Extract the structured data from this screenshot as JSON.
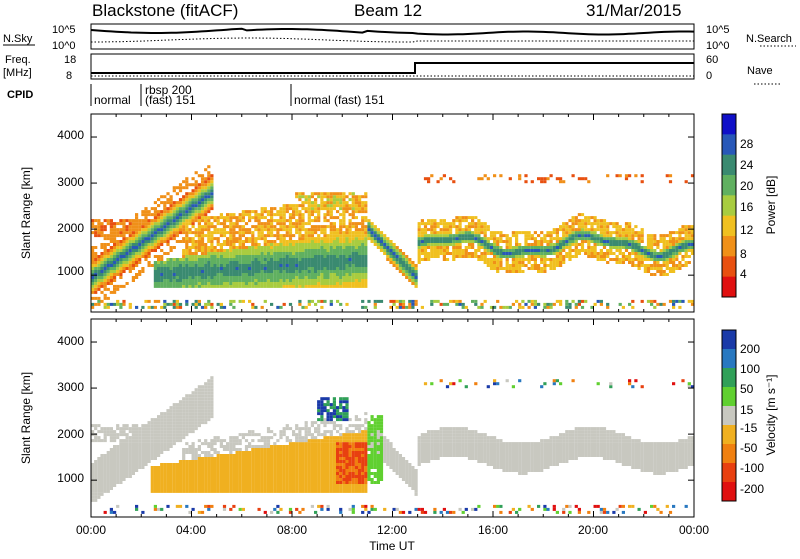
{
  "header": {
    "station": "Blackstone (fitACF)",
    "beam": "Beam 12",
    "date": "31/Mar/2015"
  },
  "summary_panels": {
    "nsky_label": "N.Sky",
    "nsky_ticks": [
      "10^5",
      "10^0"
    ],
    "nsearch_label": "N.Search",
    "freq_label_1": "Freq.",
    "freq_label_2": "[MHz]",
    "freq_ticks": [
      "18",
      "8"
    ],
    "nave_ticks": [
      "60",
      "0"
    ],
    "nave_label": "Nave",
    "cpid_label": "CPID",
    "cpid_segments": [
      {
        "text": "normal",
        "row": 2
      },
      {
        "text": "rbsp 200",
        "row": 0
      },
      {
        "text": "(fast) 151",
        "row": 1
      },
      {
        "text": "normal (fast) 151",
        "row": 2
      }
    ]
  },
  "power_panel": {
    "ylabel": "Slant Range [km]",
    "yticks": [
      "4000",
      "3000",
      "2000",
      "1000"
    ],
    "colorbar_label": "Power [dB]",
    "colorbar_ticks": [
      "28",
      "24",
      "20",
      "16",
      "12",
      "8",
      "4"
    ],
    "colorbar_colors": [
      "#1010c8",
      "#2858b8",
      "#3a8a70",
      "#60b060",
      "#a8cc40",
      "#f0c020",
      "#f09018",
      "#e85010",
      "#e01010"
    ]
  },
  "velocity_panel": {
    "ylabel": "Slant Range [km]",
    "yticks": [
      "4000",
      "3000",
      "2000",
      "1000"
    ],
    "colorbar_label": "Velocity [m s⁻¹]",
    "colorbar_ticks": [
      "200",
      "100",
      "50",
      "15",
      "-15",
      "-50",
      "-100",
      "-200"
    ],
    "colorbar_colors": [
      "#1a3aa8",
      "#2878c0",
      "#30a058",
      "#60d030",
      "#c8c8c0",
      "#f0b020",
      "#f08010",
      "#e84010",
      "#e01010"
    ]
  },
  "xaxis": {
    "ticks": [
      "00:00",
      "04:00",
      "08:00",
      "12:00",
      "16:00",
      "20:00",
      "00:00"
    ],
    "label": "Time UT"
  },
  "chart_data": [
    {
      "type": "heatmap",
      "title": "Blackstone (fitACF)",
      "subtitle": "Beam 12  31/Mar/2015",
      "xlabel": "Time UT",
      "ylabel": "Slant Range [km]",
      "xlim": [
        "00:00",
        "24:00"
      ],
      "ylim": [
        200,
        4500
      ],
      "colorbar": {
        "label": "Power [dB]",
        "range": [
          0,
          32
        ],
        "ticks": [
          4,
          8,
          12,
          16,
          20,
          24,
          28
        ]
      },
      "features": [
        {
          "name": "rising band",
          "time_start_h": 0.0,
          "time_end_h": 4.8,
          "range_start_km": 950,
          "range_end_km": 2800,
          "peak_db": 28
        },
        {
          "name": "main echo",
          "time_start_h": 2.4,
          "time_end_h": 11.0,
          "range_start_km": 700,
          "range_end_km": 1300,
          "peak_db": 24
        },
        {
          "name": "descending band",
          "time_start_h": 11.0,
          "time_end_h": 13.0,
          "range_start_km": 2000,
          "range_end_km": 900,
          "peak_db": 28
        },
        {
          "name": "wavy band",
          "time_start_h": 13.0,
          "time_end_h": 24.0,
          "range_center_km": 1700,
          "amplitude_km": 200,
          "peak_db": 28
        }
      ]
    },
    {
      "type": "heatmap",
      "xlabel": "Time UT",
      "ylabel": "Slant Range [km]",
      "xlim": [
        "00:00",
        "24:00"
      ],
      "ylim": [
        200,
        4500
      ],
      "colorbar": {
        "label": "Velocity [m s⁻¹]",
        "ticks": [
          200,
          100,
          50,
          15,
          -15,
          -50,
          -100,
          -200
        ]
      },
      "features": [
        {
          "name": "ground scatter",
          "time_start_h": 0.0,
          "time_end_h": 24.0,
          "velocity_ms": 0
        },
        {
          "name": "receding region",
          "time_start_h": 2.3,
          "time_end_h": 11.0,
          "range_start_km": 700,
          "range_end_km": 2000,
          "velocity_ms": -50
        },
        {
          "name": "strong receding core",
          "time_start_h": 9.7,
          "time_end_h": 10.9,
          "range_start_km": 900,
          "range_end_km": 1800,
          "velocity_ms": -150
        },
        {
          "name": "approaching patch",
          "time_start_h": 9.0,
          "time_end_h": 10.2,
          "range_start_km": 2300,
          "range_end_km": 2800,
          "velocity_ms": 150
        },
        {
          "name": "approaching streak",
          "time_start_h": 10.9,
          "time_end_h": 11.6,
          "range_start_km": 900,
          "range_end_km": 2400,
          "velocity_ms": 50
        }
      ]
    }
  ]
}
